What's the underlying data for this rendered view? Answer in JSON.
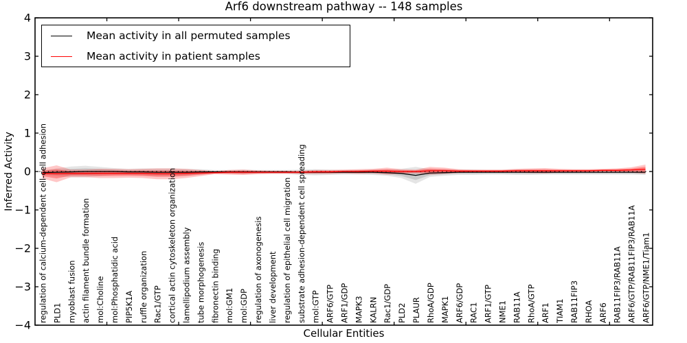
{
  "figure": {
    "background": "#ffffff",
    "text_color": "#000000"
  },
  "chart_data": {
    "type": "line",
    "title": "Arf6 downstream pathway -- 148 samples",
    "xlabel": "Cellular Entities",
    "ylabel": "Inferred Activity",
    "ylim": [
      -4,
      4
    ],
    "yticks": [
      4,
      3,
      2,
      1,
      0,
      -1,
      -2,
      -3,
      -4
    ],
    "x_major_tick_step": 5,
    "grid": false,
    "zero_line_style": "dotted",
    "legend_position": "upper left",
    "x_tick_label_rotation": 90,
    "categories": [
      "regulation of calcium-dependent cell-cell adhesion",
      "PLD1",
      "myoblast fusion",
      "actin filament bundle formation",
      "mol:Choline",
      "mol:Phosphatidic acid",
      "PIP5K1A",
      "ruffle organization",
      "Rac1/GTP",
      "cortical actin cytoskeleton organization",
      "lamellipodium assembly",
      "tube morphogenesis",
      "fibronectin binding",
      "mol:GM1",
      "mol:GDP",
      "regulation of axonogenesis",
      "liver development",
      "regulation of epithelial cell migration",
      "substrate adhesion-dependent cell spreading",
      "mol:GTP",
      "ARF6/GTP",
      "ARF1/GDP",
      "MAPK3",
      "KALRN",
      "Rac1/GDP",
      "PLD2",
      "PLAUR",
      "RhoA/GDP",
      "MAPK1",
      "ARF6/GDP",
      "RAC1",
      "ARF1/GTP",
      "NME1",
      "RAB11A",
      "RhoA/GTP",
      "ARF1",
      "TIAM1",
      "RAB11FIP3",
      "RHOA",
      "ARF6",
      "RAB11FIP3/RAB11A",
      "ARF6/GTP/RAB11FIP3/RAB11A",
      "ARF6/GTP/NME1/Tiam1"
    ],
    "series": [
      {
        "name": "Mean activity in all permuted samples",
        "color": "#000000",
        "band_alpha_outer": 0.1,
        "band_alpha_inner": 0.12,
        "values": [
          -0.03,
          -0.02,
          -0.01,
          0.0,
          0.0,
          0.0,
          -0.01,
          -0.01,
          -0.02,
          -0.02,
          -0.02,
          -0.01,
          -0.01,
          -0.01,
          -0.01,
          -0.01,
          -0.01,
          -0.01,
          -0.02,
          -0.02,
          -0.02,
          -0.02,
          -0.02,
          -0.02,
          -0.03,
          -0.05,
          -0.1,
          -0.04,
          -0.03,
          -0.02,
          -0.02,
          -0.02,
          -0.02,
          -0.02,
          -0.02,
          -0.02,
          -0.02,
          -0.02,
          -0.02,
          -0.02,
          -0.02,
          -0.02,
          -0.02
        ],
        "band_halfwidth": [
          0.06,
          0.1,
          0.14,
          0.15,
          0.12,
          0.09,
          0.08,
          0.09,
          0.1,
          0.1,
          0.09,
          0.07,
          0.05,
          0.05,
          0.06,
          0.05,
          0.05,
          0.05,
          0.07,
          0.08,
          0.07,
          0.06,
          0.06,
          0.07,
          0.08,
          0.12,
          0.22,
          0.1,
          0.08,
          0.07,
          0.07,
          0.06,
          0.06,
          0.07,
          0.07,
          0.06,
          0.06,
          0.06,
          0.06,
          0.06,
          0.06,
          0.06,
          0.07
        ]
      },
      {
        "name": "Mean activity in patient samples",
        "color": "#ff0000",
        "band_alpha_outer": 0.22,
        "band_alpha_inner": 0.3,
        "values": [
          -0.05,
          -0.06,
          -0.05,
          -0.05,
          -0.05,
          -0.05,
          -0.05,
          -0.05,
          -0.06,
          -0.06,
          -0.05,
          -0.04,
          -0.03,
          -0.02,
          -0.02,
          -0.02,
          -0.02,
          -0.02,
          -0.02,
          -0.01,
          -0.01,
          0.0,
          0.0,
          0.01,
          0.01,
          0.0,
          0.0,
          0.02,
          0.02,
          0.01,
          0.01,
          0.01,
          0.01,
          0.02,
          0.02,
          0.02,
          0.02,
          0.02,
          0.02,
          0.03,
          0.03,
          0.04,
          0.06
        ],
        "band_halfwidth": [
          0.13,
          0.22,
          0.1,
          0.1,
          0.12,
          0.12,
          0.11,
          0.12,
          0.14,
          0.14,
          0.12,
          0.08,
          0.04,
          0.06,
          0.07,
          0.05,
          0.04,
          0.04,
          0.04,
          0.05,
          0.05,
          0.05,
          0.06,
          0.06,
          0.09,
          0.06,
          0.05,
          0.1,
          0.08,
          0.05,
          0.04,
          0.04,
          0.04,
          0.05,
          0.06,
          0.07,
          0.05,
          0.04,
          0.04,
          0.04,
          0.05,
          0.07,
          0.12
        ]
      }
    ]
  }
}
